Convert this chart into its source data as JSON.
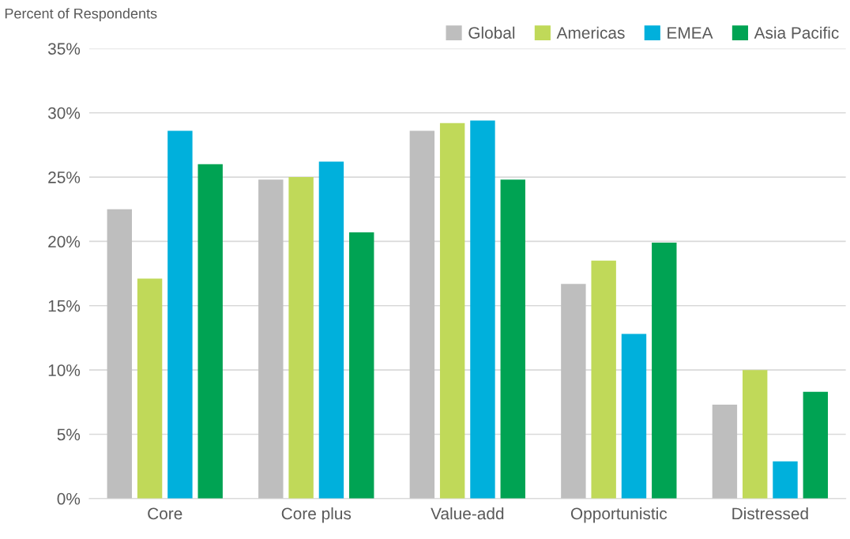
{
  "chart_data": {
    "type": "bar",
    "ylabel": "Percent of Respondents",
    "categories": [
      "Core",
      "Core plus",
      "Value-add",
      "Opportunistic",
      "Distressed"
    ],
    "series": [
      {
        "name": "Global",
        "color": "#bebebe",
        "values": [
          22.5,
          24.8,
          28.6,
          16.7,
          7.3
        ]
      },
      {
        "name": "Americas",
        "color": "#c0d959",
        "values": [
          17.1,
          25.0,
          29.2,
          18.5,
          10.0
        ]
      },
      {
        "name": "EMEA",
        "color": "#00b0dc",
        "values": [
          28.6,
          26.2,
          29.4,
          12.8,
          2.9
        ]
      },
      {
        "name": "Asia Pacific",
        "color": "#00a353",
        "values": [
          26.0,
          20.7,
          24.8,
          19.9,
          8.3
        ]
      }
    ],
    "ylim": [
      0,
      35
    ],
    "yticks": [
      {
        "value": 0,
        "label": "0%"
      },
      {
        "value": 5,
        "label": "5%"
      },
      {
        "value": 10,
        "label": "10%"
      },
      {
        "value": 15,
        "label": "15%"
      },
      {
        "value": 20,
        "label": "20%"
      },
      {
        "value": 25,
        "label": "25%"
      },
      {
        "value": 30,
        "label": "30%"
      },
      {
        "value": 35,
        "label": "35%"
      }
    ],
    "grid": "y",
    "legend": "top right"
  }
}
